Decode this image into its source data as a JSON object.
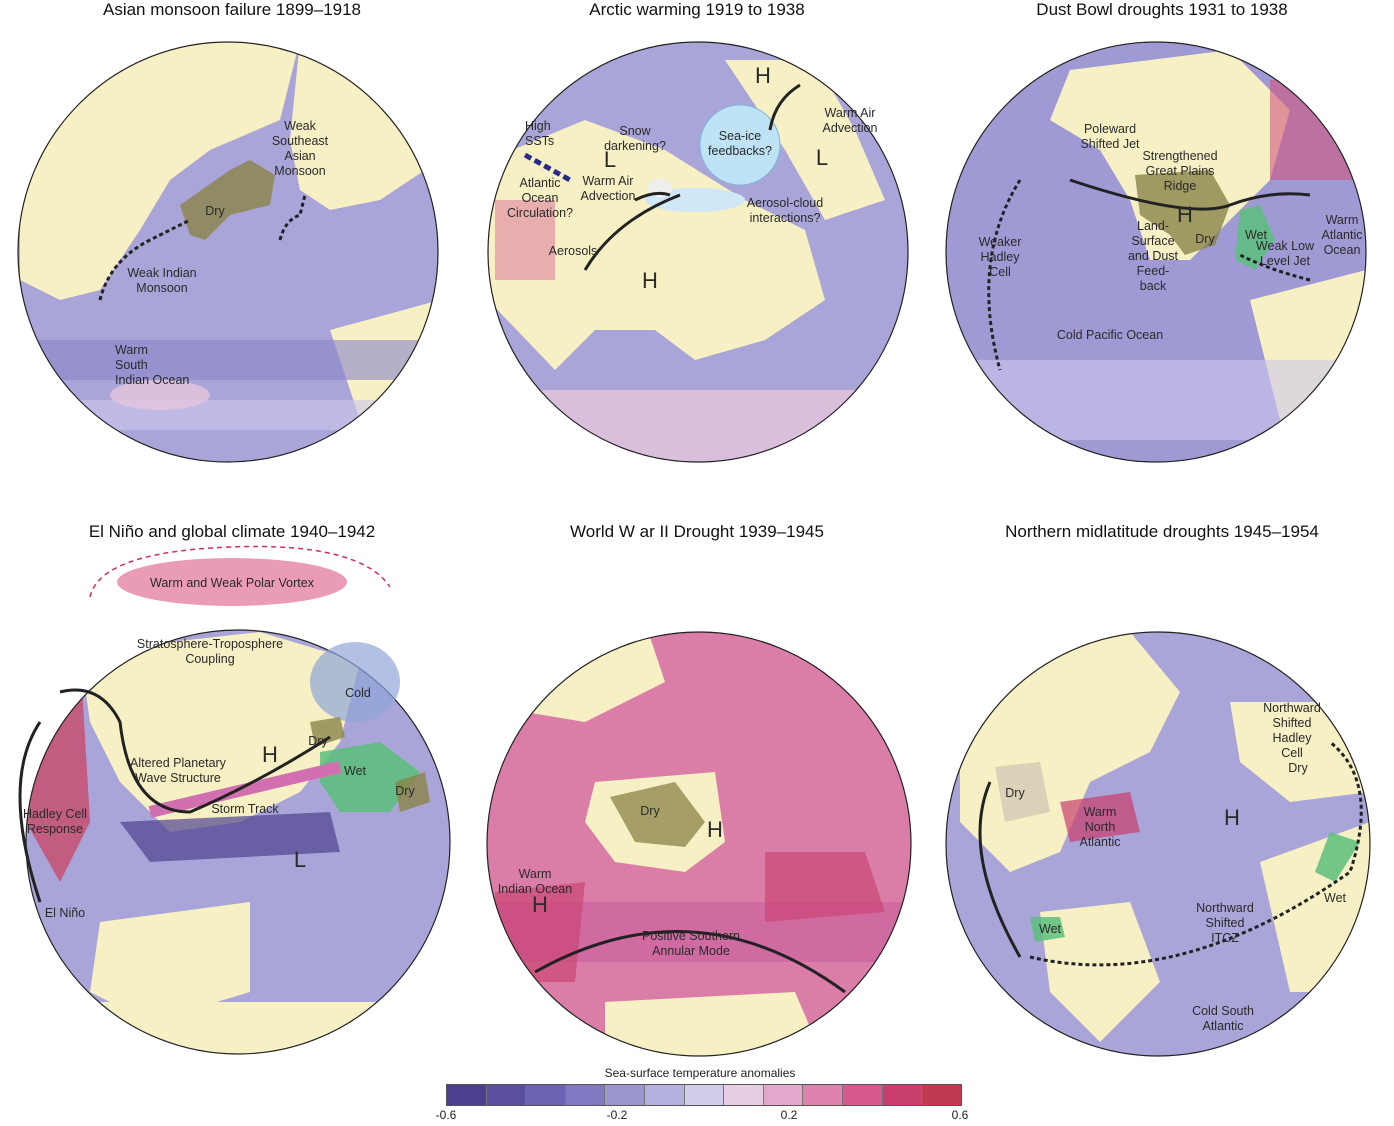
{
  "panels": [
    {
      "title": "Asian monsoon failure 1899–1918",
      "labels": {
        "l1": "Weak",
        "l2": "Southeast",
        "l3": "Asian",
        "l4": "Monsoon",
        "l5": "Dry",
        "l6": "Weak Indian",
        "l7": "Monsoon",
        "l8": "Warm",
        "l9": "South",
        "l10": "Indian Ocean"
      }
    },
    {
      "title": "Arctic warming 1919 to 1938",
      "labels": {
        "l1": "H",
        "l2": "Warm Air",
        "l3": "Advection",
        "l4": "High",
        "l5": "SSTs",
        "l6": "Snow",
        "l7": "darkening?",
        "l8": "Sea-ice",
        "l9": "feedbacks?",
        "l10": "L",
        "l11": "L",
        "l12": "Atlantic",
        "l13": "Ocean",
        "l14": "Circulation?",
        "l15": "Warm Air",
        "l16": "Advection",
        "l17": "Aerosol-cloud",
        "l18": "interactions?",
        "l19": "Aerosols",
        "l20": "H"
      }
    },
    {
      "title": "Dust Bowl droughts 1931 to 1938",
      "labels": {
        "l1": "Poleward",
        "l2": "Shifted Jet",
        "l3": "Strengthened",
        "l4": "Great Plains",
        "l5": "Ridge",
        "l6": "Land-",
        "l7": "Surface",
        "l8": "and Dust",
        "l9": "Feed-",
        "l10": "back",
        "l11": "H",
        "l12": "Dry",
        "l13": "Wet",
        "l14": "Weak Low",
        "l15": "Level Jet",
        "l16": "Weaker",
        "l17": "Hadley",
        "l18": "Cell",
        "l19": "Cold Pacific Ocean",
        "l20": "Warm",
        "l21": "Atlantic",
        "l22": "Ocean"
      }
    },
    {
      "title": "El Niño and global climate 1940–1942",
      "labels": {
        "l1": "Warm and Weak Polar Vortex",
        "l2": "Stratosphere-Troposphere",
        "l3": "Coupling",
        "l4": "Cold",
        "l5": "Dry",
        "l6": "H",
        "l7": "Wet",
        "l8": "Dry",
        "l9": "Altered Planetary",
        "l10": "Wave Structure",
        "l11": "Storm Track",
        "l12": "Hadley Cell",
        "l13": "Response",
        "l14": "L",
        "l15": "El Niño"
      }
    },
    {
      "title": "World W ar II Drought 1939–1945",
      "labels": {
        "l1": "Dry",
        "l2": "H",
        "l3": "Warm",
        "l4": "Indian Ocean",
        "l5": "H",
        "l6": "Positive Southern",
        "l7": "Annular Mode"
      }
    },
    {
      "title": "Northern midlatitude droughts 1945–1954",
      "labels": {
        "l1": "Northward",
        "l2": "Shifted",
        "l3": "Hadley",
        "l4": "Cell",
        "l5": "Dry",
        "l6": "Dry",
        "l7": "Warm",
        "l8": "North",
        "l9": "Atlantic",
        "l10": "H",
        "l11": "Wet",
        "l12": "Northward",
        "l13": "Shifted",
        "l14": "ITCZ",
        "l15": "Wet",
        "l16": "Cold South",
        "l17": "Atlantic"
      }
    }
  ],
  "legend": {
    "title": "Sea-surface temperature anomalies",
    "ticks": [
      "-0.6",
      "-0.2",
      "0.2",
      "0.6"
    ],
    "colors": [
      "#4b3f8f",
      "#5a4ea0",
      "#6b62b3",
      "#8179c2",
      "#9b95d0",
      "#b4b1de",
      "#cfcdea",
      "#e6cde3",
      "#e3a7cc",
      "#de82ae",
      "#d65a8e",
      "#c93d6c",
      "#c23a50"
    ]
  }
}
